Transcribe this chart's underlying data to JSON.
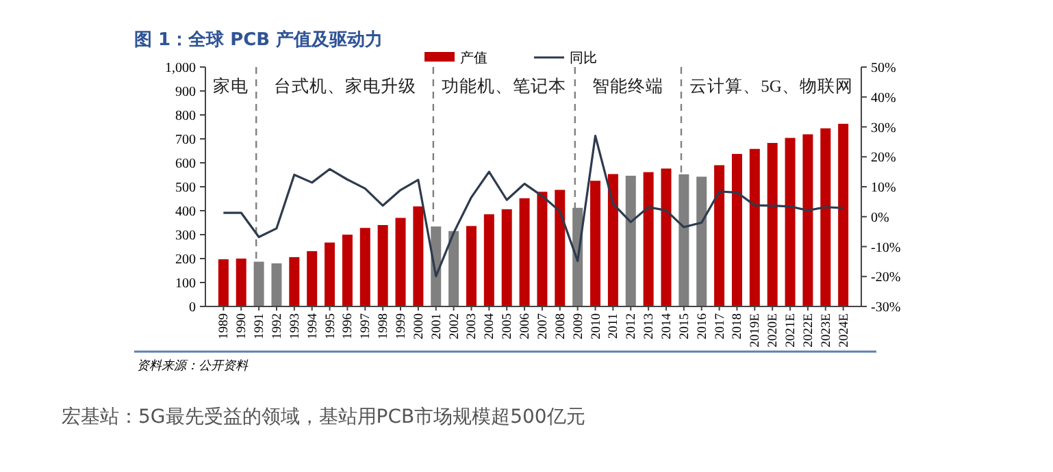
{
  "chart_data": {
    "type": "bar",
    "title": "图 1：全球 PCB 产值及驱动力",
    "categories": [
      "1989",
      "1990",
      "1991",
      "1992",
      "1993",
      "1994",
      "1995",
      "1996",
      "1997",
      "1998",
      "1999",
      "2000",
      "2001",
      "2002",
      "2003",
      "2004",
      "2005",
      "2006",
      "2007",
      "2008",
      "2009",
      "2010",
      "2011",
      "2012",
      "2013",
      "2014",
      "2015",
      "2016",
      "2017",
      "2018",
      "2019E",
      "2020E",
      "2021E",
      "2022E",
      "2023E",
      "2024E"
    ],
    "series": [
      {
        "name": "产值",
        "color": "#c00000",
        "colors": [
          "#c00000",
          "#c00000",
          "#808080",
          "#808080",
          "#c00000",
          "#c00000",
          "#c00000",
          "#c00000",
          "#c00000",
          "#c00000",
          "#c00000",
          "#c00000",
          "#808080",
          "#808080",
          "#c00000",
          "#c00000",
          "#c00000",
          "#c00000",
          "#c00000",
          "#c00000",
          "#808080",
          "#c00000",
          "#c00000",
          "#808080",
          "#c00000",
          "#c00000",
          "#808080",
          "#808080",
          "#c00000",
          "#c00000",
          "#c00000",
          "#c00000",
          "#c00000",
          "#c00000",
          "#c00000",
          "#c00000"
        ],
        "values": [
          197,
          200,
          187,
          180,
          206,
          231,
          267,
          300,
          328,
          340,
          370,
          418,
          334,
          315,
          336,
          385,
          406,
          452,
          479,
          487,
          412,
          525,
          553,
          546,
          561,
          576,
          552,
          542,
          590,
          637,
          658,
          683,
          704,
          719,
          744,
          763
        ]
      },
      {
        "name": "同比",
        "type": "line",
        "axis": "y2",
        "color": "#2e3b4e",
        "values": [
          1.3,
          1.3,
          -6.8,
          -3.9,
          14,
          11.4,
          15.9,
          12.4,
          9.4,
          3.7,
          8.9,
          12.3,
          -19.9,
          -5.4,
          6.5,
          15,
          5.6,
          11,
          6.9,
          1.8,
          -14.8,
          27,
          4.3,
          -1.8,
          3.2,
          2.1,
          -3.5,
          -2,
          8.4,
          8.1,
          3.8,
          3.7,
          3.4,
          2.1,
          3.2,
          2.9
        ]
      }
    ],
    "ylim": [
      0,
      1000
    ],
    "yticks": [
      0,
      100,
      200,
      300,
      400,
      500,
      600,
      700,
      800,
      900,
      {
        "value": 1000,
        "label": "1,000"
      }
    ],
    "y2lim": [
      -30,
      50
    ],
    "y2ticks": [
      {
        "value": -30,
        "label": "-30%"
      },
      {
        "value": -20,
        "label": "-20%"
      },
      {
        "value": -10,
        "label": "-10%"
      },
      {
        "value": 0,
        "label": "0%"
      },
      {
        "value": 10,
        "label": "10%"
      },
      {
        "value": 20,
        "label": "20%"
      },
      {
        "value": 30,
        "label": "30%"
      },
      {
        "value": 40,
        "label": "40%"
      },
      {
        "value": 50,
        "label": "50%"
      }
    ],
    "ref_lines": [
      {
        "axis": "x",
        "value": "1991",
        "line_style": "dashed",
        "color": "#808080"
      },
      {
        "axis": "x",
        "value": "2001",
        "line_style": "dashed",
        "color": "#808080"
      },
      {
        "axis": "x",
        "value": "2009",
        "line_style": "dashed",
        "color": "#808080"
      },
      {
        "axis": "x",
        "value": "2015",
        "line_style": "dashed",
        "color": "#808080"
      }
    ],
    "annotations": [
      "家电",
      "台式机、家电升级",
      "功能机、笔记本",
      "智能终端",
      "云计算、5G、物联网",
      "资料来源：公开资料",
      "宏基站：5G最先受益的领域，基站用PCB市场规模超500亿元"
    ],
    "legend": "top",
    "grid": false,
    "line_style": "solid",
    "marker": "none"
  }
}
